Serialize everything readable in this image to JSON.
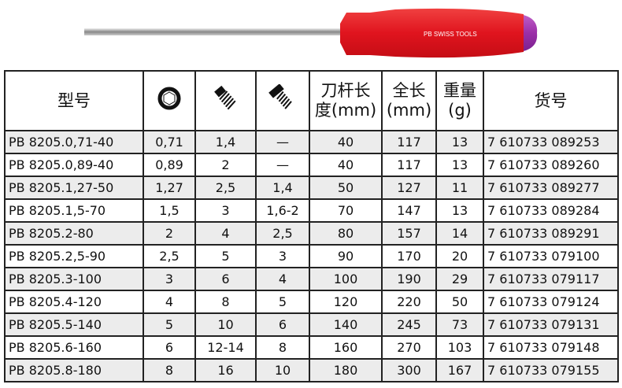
{
  "brand": "PB SWISS TOOLS",
  "headers": {
    "model": "型号",
    "hex": "hex-socket-icon",
    "set_screw": "set-screw-icon",
    "cap_screw": "cap-screw-icon",
    "blade_length_1": "刀杆长",
    "blade_length_2": "度(mm)",
    "total_length_1": "全长",
    "total_length_2": "(mm)",
    "weight_1": "重量",
    "weight_2": "(g)",
    "article": "货号"
  },
  "rows": [
    [
      "PB 8205.0,71-40",
      "0,71",
      "1,4",
      "—",
      "40",
      "117",
      "13",
      "7 610733 089253"
    ],
    [
      "PB 8205.0,89-40",
      "0,89",
      "2",
      "—",
      "40",
      "117",
      "13",
      "7 610733 089260"
    ],
    [
      "PB 8205.1,27-50",
      "1,27",
      "2,5",
      "1,4",
      "50",
      "127",
      "11",
      "7 610733 089277"
    ],
    [
      "PB 8205.1,5-70",
      "1,5",
      "3",
      "1,6-2",
      "70",
      "147",
      "13",
      "7 610733 089284"
    ],
    [
      "PB 8205.2-80",
      "2",
      "4",
      "2,5",
      "80",
      "157",
      "14",
      "7 610733 089291"
    ],
    [
      "PB 8205.2,5-90",
      "2,5",
      "5",
      "3",
      "90",
      "170",
      "20",
      "7 610733 079100"
    ],
    [
      "PB 8205.3-100",
      "3",
      "6",
      "4",
      "100",
      "190",
      "29",
      "7 610733 079117"
    ],
    [
      "PB 8205.4-120",
      "4",
      "8",
      "5",
      "120",
      "220",
      "50",
      "7 610733 079124"
    ],
    [
      "PB 8205.5-140",
      "5",
      "10",
      "6",
      "140",
      "245",
      "73",
      "7 610733 079131"
    ],
    [
      "PB 8205.6-160",
      "6",
      "12-14",
      "8",
      "160",
      "270",
      "103",
      "7 610733 079148"
    ],
    [
      "PB 8205.8-180",
      "8",
      "16",
      "10",
      "180",
      "300",
      "167",
      "7 610733 079155"
    ]
  ],
  "colors": {
    "handle": "#e0141e",
    "cap": "#9b2fa8",
    "row_alt": "#ececec"
  }
}
